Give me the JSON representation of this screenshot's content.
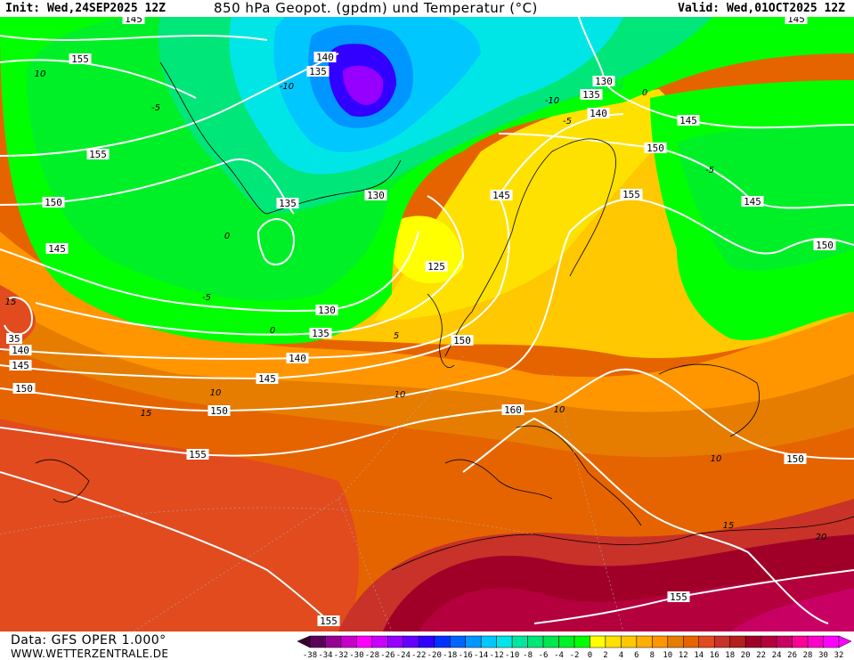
{
  "header": {
    "init": "Init: Wed,24SEP2025 12Z",
    "title": "850 hPa Geopot. (gpdm) und Temperatur (°C)",
    "valid": "Valid: Wed,01OCT2025 12Z"
  },
  "footer": {
    "source": "Data: GFS OPER 1.000°",
    "site": "WWW.WETTERZENTRALE.DE"
  },
  "legend": {
    "labels": [
      "-38",
      "-34",
      "-32",
      "-30",
      "-28",
      "-26",
      "-24",
      "-22",
      "-20",
      "-18",
      "-16",
      "-14",
      "-12",
      "-10",
      "-8",
      "-6",
      "-4",
      "-2",
      "0",
      "2",
      "4",
      "6",
      "8",
      "10",
      "12",
      "14",
      "16",
      "18",
      "20",
      "22",
      "24",
      "26",
      "28",
      "30",
      "32"
    ],
    "colors": [
      "#5a005a",
      "#960096",
      "#c800c8",
      "#ff00ff",
      "#c800ff",
      "#9600ff",
      "#6400ff",
      "#3200ff",
      "#0032ff",
      "#0064ff",
      "#0096ff",
      "#00c8ff",
      "#00e6e6",
      "#00e6a0",
      "#00e678",
      "#00e650",
      "#00f028",
      "#00ff00",
      "#ffff00",
      "#ffe100",
      "#ffc800",
      "#ffaf00",
      "#ff9600",
      "#e67d00",
      "#e66400",
      "#e14b1e",
      "#c83228",
      "#b41e1e",
      "#a00028",
      "#b4003c",
      "#c80064",
      "#ff0096",
      "#ff00c8",
      "#ff00ff"
    ],
    "below_color": "#3a0030",
    "above_color": "#ff00ff"
  },
  "geopotential_labels": [
    "145",
    "155",
    "140",
    "135",
    "130",
    "135",
    "140",
    "145",
    "150",
    "155",
    "150",
    "145",
    "135",
    "130",
    "145",
    "155",
    "145",
    "150",
    "125",
    "130",
    "135",
    "140",
    "150",
    "145",
    "150",
    "35",
    "140",
    "145",
    "150",
    "160",
    "155",
    "150",
    "155",
    "155",
    "145"
  ],
  "temperature_labels": [
    "10",
    "-10",
    "-5",
    "0",
    "-10",
    "-5",
    "0",
    "-5",
    "0",
    "5",
    "10",
    "10",
    "15",
    "10",
    "10",
    "15",
    "20",
    "15",
    "-5"
  ]
}
